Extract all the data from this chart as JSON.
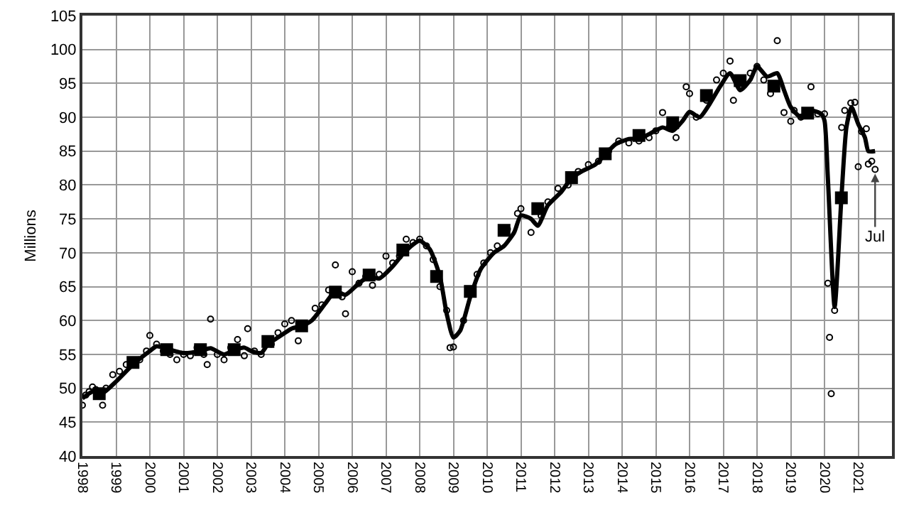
{
  "chart_data": {
    "type": "scatter",
    "ylabel": "Millions",
    "xlim": [
      1998,
      2022
    ],
    "xticks": [
      1998,
      1999,
      2000,
      2001,
      2002,
      2003,
      2004,
      2005,
      2006,
      2007,
      2008,
      2009,
      2010,
      2011,
      2012,
      2013,
      2014,
      2015,
      2016,
      2017,
      2018,
      2019,
      2020,
      2021
    ],
    "ylim": [
      40,
      105
    ],
    "yticks": [
      40,
      45,
      50,
      55,
      60,
      65,
      70,
      75,
      80,
      85,
      90,
      95,
      100,
      105
    ],
    "grid": true,
    "series": [
      {
        "marker": "circle",
        "color": "#000000",
        "x": [
          1998.0,
          1998.1,
          1998.2,
          1998.3,
          1998.4,
          1998.6,
          1998.7,
          1998.9,
          1999.1,
          1999.3,
          1999.7,
          1999.9,
          2000.0,
          2000.2,
          2000.4,
          2000.6,
          2000.8,
          2001.0,
          2001.2,
          2001.4,
          2001.6,
          2001.7,
          2001.8,
          2002.0,
          2002.2,
          2002.4,
          2002.6,
          2002.8,
          2002.9,
          2003.1,
          2003.3,
          2003.6,
          2003.8,
          2004.0,
          2004.2,
          2004.4,
          2004.9,
          2005.1,
          2005.3,
          2005.5,
          2005.7,
          2005.8,
          2006.0,
          2006.2,
          2006.4,
          2006.6,
          2006.8,
          2007.0,
          2007.2,
          2007.4,
          2007.6,
          2007.8,
          2008.0,
          2008.2,
          2008.4,
          2008.6,
          2008.8,
          2008.9,
          2009.0,
          2009.3,
          2009.7,
          2009.9,
          2010.1,
          2010.3,
          2010.6,
          2010.9,
          2011.0,
          2011.3,
          2011.6,
          2011.8,
          2012.1,
          2012.4,
          2012.7,
          2013.0,
          2013.3,
          2013.6,
          2013.9,
          2014.2,
          2014.5,
          2014.8,
          2015.0,
          2015.2,
          2015.4,
          2015.6,
          2015.9,
          2016.0,
          2016.2,
          2016.5,
          2016.8,
          2017.0,
          2017.2,
          2017.3,
          2017.8,
          2018.0,
          2018.2,
          2018.4,
          2018.6,
          2018.8,
          2019.0,
          2019.1,
          2019.3,
          2019.6,
          2019.8,
          2020.0,
          2020.1,
          2020.15,
          2020.2,
          2020.3,
          2020.51,
          2020.6,
          2020.78,
          2020.9,
          2021.0,
          2021.1,
          2021.24,
          2021.3,
          2021.4,
          2021.5
        ],
        "values": [
          47.5,
          49,
          49.5,
          50.2,
          49.8,
          47.5,
          50,
          52,
          52.5,
          53.5,
          54.2,
          55.5,
          57.8,
          56.5,
          55.5,
          55,
          54.2,
          55,
          54.8,
          56,
          55,
          53.5,
          60.2,
          55,
          54.2,
          56,
          57.2,
          54.8,
          58.8,
          55.5,
          55,
          56.5,
          58.2,
          59.5,
          60,
          57,
          61.8,
          62.3,
          64.5,
          68.2,
          63.5,
          61,
          67.2,
          65.5,
          66.5,
          65.2,
          66.8,
          69.5,
          68.5,
          69.5,
          72,
          71.5,
          72,
          71,
          69,
          65,
          61.5,
          56,
          56.1,
          60,
          66.8,
          68.5,
          70,
          71,
          73.5,
          75.8,
          76.5,
          73,
          75.5,
          77.5,
          79.5,
          80,
          82,
          83,
          83.5,
          85,
          86.5,
          86.2,
          86.5,
          87,
          88,
          90.7,
          88.5,
          87,
          94.5,
          93.5,
          90,
          92.5,
          95.5,
          96.5,
          98.3,
          92.5,
          96.5,
          97.5,
          95.5,
          93.5,
          101.3,
          90.7,
          89.4,
          91,
          90,
          94.5,
          90.5,
          90.5,
          65.5,
          57.5,
          49.2,
          61.5,
          88.5,
          91,
          92.1,
          92.2,
          82.7,
          87.9,
          88.3,
          83.1,
          83.5,
          82.3
        ]
      },
      {
        "type": "line",
        "marker": "none",
        "color": "#000000",
        "x": [
          1998.0,
          1998.3,
          1998.6,
          1999.0,
          1999.5,
          2000.0,
          2000.2,
          2000.6,
          2001.0,
          2001.5,
          2001.8,
          2002.2,
          2002.5,
          2002.8,
          2003.0,
          2003.3,
          2003.5,
          2003.8,
          2004.2,
          2004.5,
          2004.8,
          2005.2,
          2005.5,
          2005.8,
          2006.2,
          2006.5,
          2006.8,
          2007.2,
          2007.5,
          2007.8,
          2008.0,
          2008.3,
          2008.6,
          2008.8,
          2009.0,
          2009.2,
          2009.5,
          2009.8,
          2010.2,
          2010.5,
          2010.8,
          2011.0,
          2011.3,
          2011.5,
          2011.8,
          2012.2,
          2012.5,
          2012.8,
          2013.2,
          2013.5,
          2013.8,
          2014.2,
          2014.5,
          2014.8,
          2015.2,
          2015.5,
          2015.8,
          2016.0,
          2016.3,
          2016.6,
          2016.9,
          2017.2,
          2017.5,
          2017.8,
          2018.0,
          2018.3,
          2018.6,
          2018.8,
          2019.0,
          2019.3,
          2019.6,
          2019.9,
          2020.0,
          2020.1,
          2020.3,
          2020.5,
          2020.65,
          2020.8,
          2021.0,
          2021.2,
          2021.3,
          2021.5
        ],
        "values": [
          48.5,
          49.5,
          49.3,
          51,
          53.5,
          55.5,
          56.2,
          55.7,
          55.2,
          55.5,
          55.9,
          55,
          55.6,
          56,
          55.5,
          55.2,
          56.5,
          57.5,
          58.8,
          59.2,
          60,
          62.5,
          64.3,
          63.8,
          65.5,
          66.5,
          66.2,
          68,
          69.8,
          71.2,
          71.8,
          70.5,
          66.5,
          61,
          57.5,
          58.5,
          63.5,
          67.5,
          70,
          71,
          73,
          75.5,
          75,
          74,
          77,
          79,
          81,
          82,
          83,
          84.5,
          86,
          86.8,
          86.8,
          87.5,
          88.5,
          88,
          89.5,
          90.8,
          90,
          92,
          94.5,
          96.5,
          94,
          95.5,
          97.5,
          96,
          96.5,
          94,
          91.5,
          90,
          91,
          90.5,
          89.5,
          81,
          62,
          78,
          88.5,
          91.5,
          89,
          87,
          85,
          85
        ]
      },
      {
        "type": "scatter",
        "marker": "square",
        "color": "#000000",
        "x": [
          1998.5,
          1999.5,
          2000.5,
          2001.5,
          2002.5,
          2003.5,
          2004.5,
          2005.5,
          2006.5,
          2007.5,
          2008.5,
          2009.5,
          2010.5,
          2011.5,
          2012.5,
          2013.5,
          2014.5,
          2015.5,
          2016.5,
          2017.5,
          2018.5,
          2019.5,
          2020.5
        ],
        "values": [
          49.2,
          53.8,
          55.7,
          55.7,
          55.7,
          56.9,
          59.2,
          64.2,
          66.7,
          70.4,
          66.5,
          64.3,
          73.3,
          76.5,
          81.1,
          84.6,
          87.3,
          89.2,
          93.2,
          95.4,
          94.6,
          90.6,
          78.1
        ]
      }
    ],
    "annotations": [
      {
        "text": "Jul",
        "x": 2021.5,
        "y": 82.3
      }
    ]
  }
}
